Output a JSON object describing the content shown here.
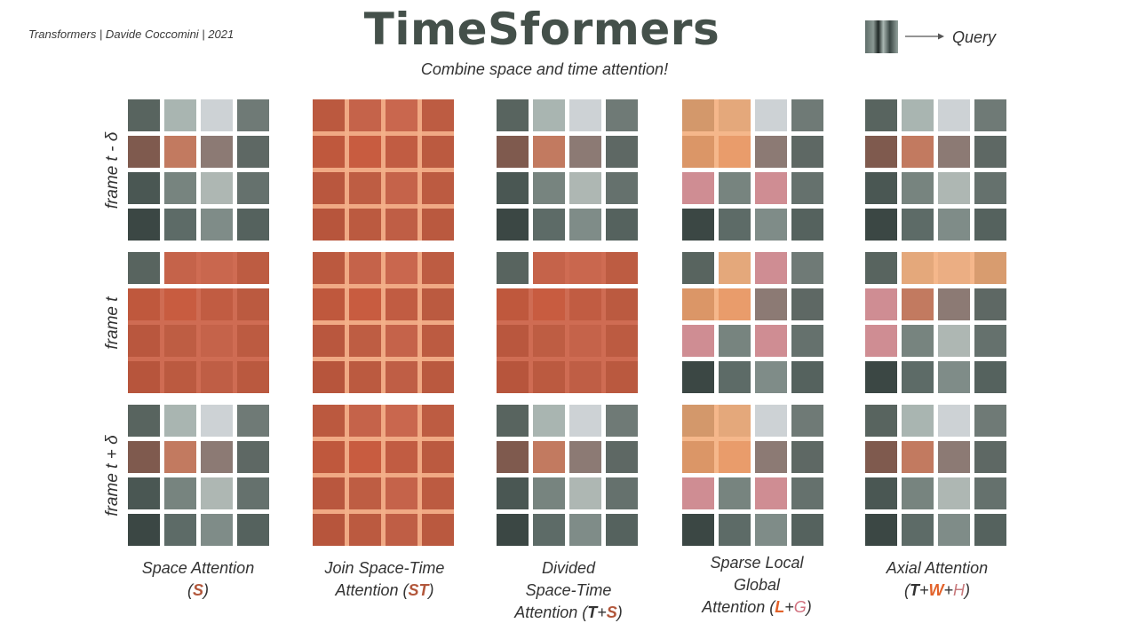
{
  "credit": "Transformers | Davide Coccomini | 2021",
  "title": "TimeSformers",
  "subtitle": "Combine space and time attention!",
  "legend": {
    "label": "Query",
    "patch_icon": "video-patch-swatch",
    "arrow_icon": "right-arrow-icon"
  },
  "row_labels": [
    "frame t - δ",
    "frame t",
    "frame t + δ"
  ],
  "grid": {
    "rows": 4,
    "cols": 4
  },
  "colors": {
    "attention": "#c8583b",
    "local": "#f2a56e",
    "ink": "#333333"
  },
  "columns": [
    {
      "lines": [
        [
          {
            "t": "Space Attention"
          }
        ],
        [
          {
            "t": "("
          },
          {
            "t": "S",
            "s": "brown"
          },
          {
            "t": ")"
          }
        ]
      ]
    },
    {
      "lines": [
        [
          {
            "t": "Join Space-Time"
          }
        ],
        [
          {
            "t": "Attention ("
          },
          {
            "t": "ST",
            "s": "brown"
          },
          {
            "t": ")"
          }
        ]
      ]
    },
    {
      "lines": [
        [
          {
            "t": "Divided"
          }
        ],
        [
          {
            "t": "Space-Time"
          }
        ],
        [
          {
            "t": "Attention ("
          },
          {
            "t": "T",
            "s": "bold"
          },
          {
            "t": "+"
          },
          {
            "t": "S",
            "s": "brown"
          },
          {
            "t": ")"
          }
        ]
      ]
    },
    {
      "lines": [
        [
          {
            "t": "Sparse Local"
          }
        ],
        [
          {
            "t": "Global"
          }
        ],
        [
          {
            "t": "Attention ("
          },
          {
            "t": "L",
            "s": "orange"
          },
          {
            "t": "+"
          },
          {
            "t": "G",
            "s": "pink"
          },
          {
            "t": ")"
          }
        ]
      ]
    },
    {
      "lines": [
        [
          {
            "t": "Axial Attention"
          }
        ],
        [
          {
            "t": "("
          },
          {
            "t": "T",
            "s": "bold"
          },
          {
            "t": "+"
          },
          {
            "t": "W",
            "s": "orange"
          },
          {
            "t": "+"
          },
          {
            "t": "H",
            "s": "lpink"
          },
          {
            "t": ")"
          }
        ]
      ]
    }
  ]
}
